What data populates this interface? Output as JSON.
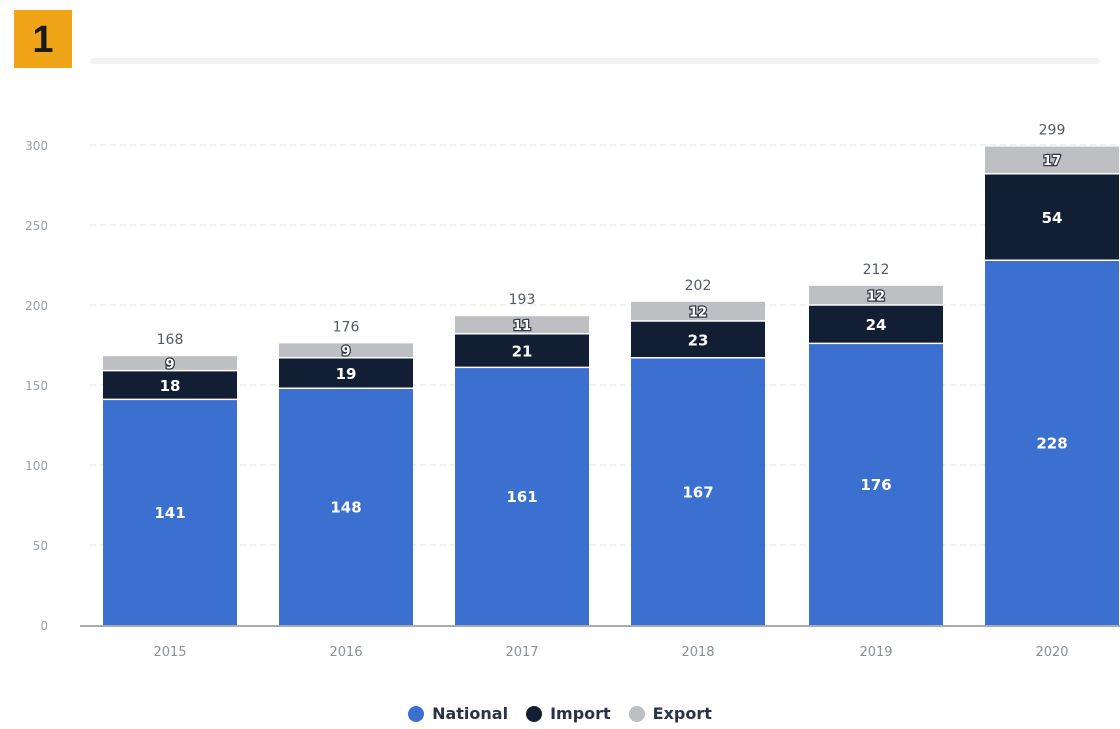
{
  "badge": {
    "number": "1"
  },
  "chart_data": {
    "type": "bar",
    "stacked": true,
    "categories": [
      "2015",
      "2016",
      "2017",
      "2018",
      "2019",
      "2020"
    ],
    "series": [
      {
        "name": "National",
        "values": [
          141,
          148,
          161,
          167,
          176,
          228
        ],
        "color": "#3b6fd0"
      },
      {
        "name": "Import",
        "values": [
          18,
          19,
          21,
          23,
          24,
          54
        ],
        "color": "#111e33"
      },
      {
        "name": "Export",
        "values": [
          9,
          9,
          11,
          12,
          12,
          17
        ],
        "color": "#bdbfc3"
      }
    ],
    "segment_labels": [
      [
        "141",
        "18",
        "9"
      ],
      [
        "148",
        "19",
        "9"
      ],
      [
        "161",
        "21",
        "11"
      ],
      [
        "167",
        "23",
        "12"
      ],
      [
        "176",
        "24",
        "12"
      ],
      [
        "228",
        "54",
        "17"
      ]
    ],
    "totals": [
      "168",
      "176",
      "193",
      "202",
      "212",
      "299"
    ],
    "yticks": [
      "0",
      "50",
      "100",
      "150",
      "200",
      "250",
      "300"
    ],
    "ylim": [
      0,
      300
    ],
    "grid": true,
    "legend_position": "bottom",
    "title": "",
    "xlabel": "",
    "ylabel": ""
  }
}
